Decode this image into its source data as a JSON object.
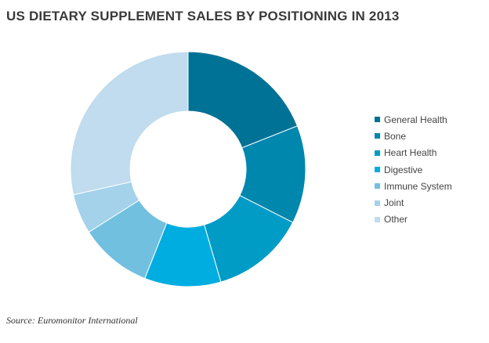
{
  "chart_data": {
    "type": "pie",
    "title": "US DIETARY SUPPLEMENT SALES BY POSITIONING IN 2013",
    "source": "Source: Euromonitor International",
    "legend_position": "right",
    "donut": true,
    "categories": [
      "General Health",
      "Bone",
      "Heart Health",
      "Digestive",
      "Immune System",
      "Joint",
      "Other"
    ],
    "values": [
      19.0,
      13.5,
      13.0,
      10.5,
      10.0,
      5.5,
      28.5
    ],
    "colors": [
      "#007296",
      "#0087ae",
      "#009cc6",
      "#00ade0",
      "#72c0e0",
      "#a4d2ea",
      "#c0dcee"
    ]
  }
}
